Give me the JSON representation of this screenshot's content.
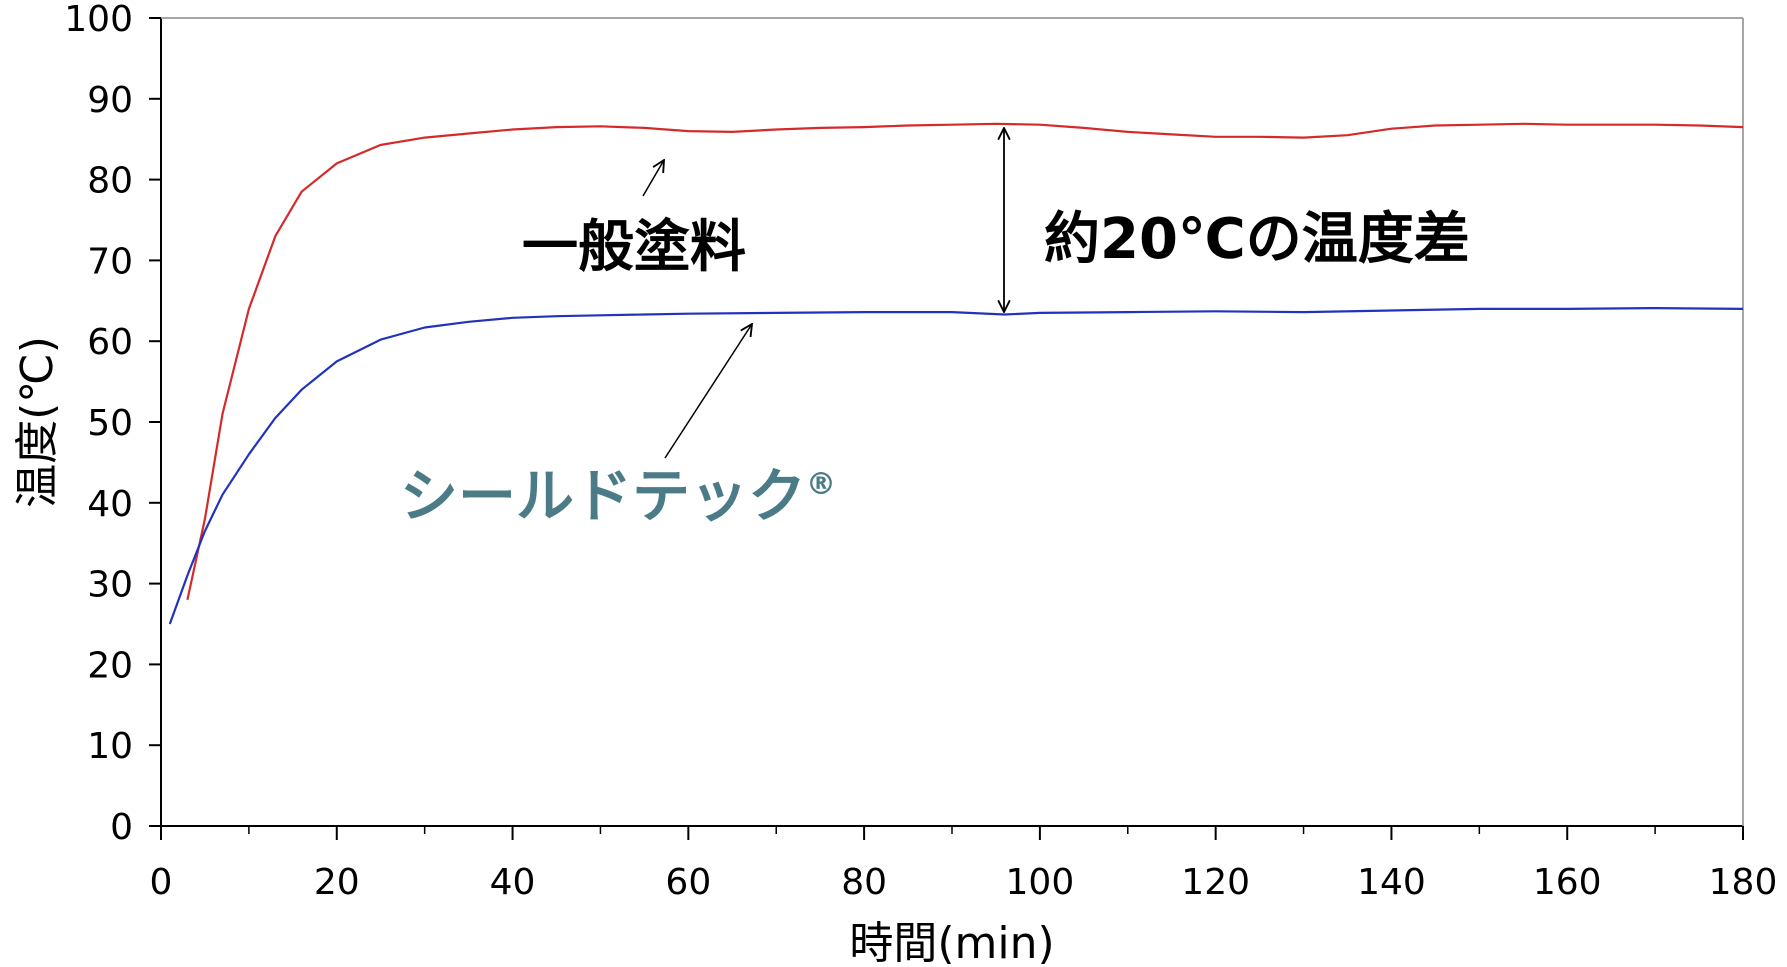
{
  "chart_data": {
    "type": "line",
    "xlabel": "時間(min)",
    "ylabel": "温度(℃)",
    "xlim": [
      0,
      180
    ],
    "ylim": [
      0,
      100
    ],
    "x_ticks": [
      "0",
      "20",
      "40",
      "60",
      "80",
      "100",
      "120",
      "140",
      "160",
      "180"
    ],
    "y_ticks": [
      "0",
      "10",
      "20",
      "30",
      "40",
      "50",
      "60",
      "70",
      "80",
      "90",
      "100"
    ],
    "grid": false,
    "legend": "none",
    "series": [
      {
        "name": "一般塗料",
        "color": "#d42a2a",
        "x": [
          3,
          5,
          7,
          10,
          13,
          16,
          20,
          25,
          30,
          35,
          40,
          45,
          50,
          55,
          60,
          65,
          70,
          75,
          80,
          85,
          90,
          95,
          100,
          105,
          110,
          115,
          120,
          125,
          130,
          135,
          140,
          145,
          150,
          155,
          160,
          165,
          170,
          175,
          180
        ],
        "y": [
          28,
          38,
          51,
          64,
          73,
          78.5,
          82,
          84.3,
          85.2,
          85.7,
          86.2,
          86.5,
          86.6,
          86.4,
          86.0,
          85.9,
          86.2,
          86.4,
          86.5,
          86.7,
          86.8,
          86.9,
          86.8,
          86.4,
          85.9,
          85.6,
          85.3,
          85.3,
          85.2,
          85.5,
          86.3,
          86.7,
          86.8,
          86.9,
          86.8,
          86.8,
          86.8,
          86.7,
          86.5
        ]
      },
      {
        "name": "シールドテック®",
        "color": "#2233bb",
        "x": [
          1,
          3,
          5,
          7,
          10,
          13,
          16,
          20,
          25,
          30,
          35,
          40,
          45,
          50,
          55,
          60,
          70,
          80,
          90,
          96,
          100,
          110,
          120,
          130,
          140,
          150,
          160,
          170,
          180
        ],
        "y": [
          25,
          31,
          36.5,
          41,
          46,
          50.5,
          54,
          57.5,
          60.2,
          61.7,
          62.4,
          62.9,
          63.1,
          63.2,
          63.3,
          63.4,
          63.5,
          63.6,
          63.6,
          63.3,
          63.5,
          63.6,
          63.7,
          63.6,
          63.8,
          64.0,
          64.0,
          64.1,
          64.0
        ]
      }
    ],
    "annotations": {
      "paint_label": "一般塗料",
      "brand_label": "シールドテック",
      "brand_mark": "®",
      "diff_label": "約20℃の温度差",
      "brand_color": "#4a7b87"
    }
  }
}
